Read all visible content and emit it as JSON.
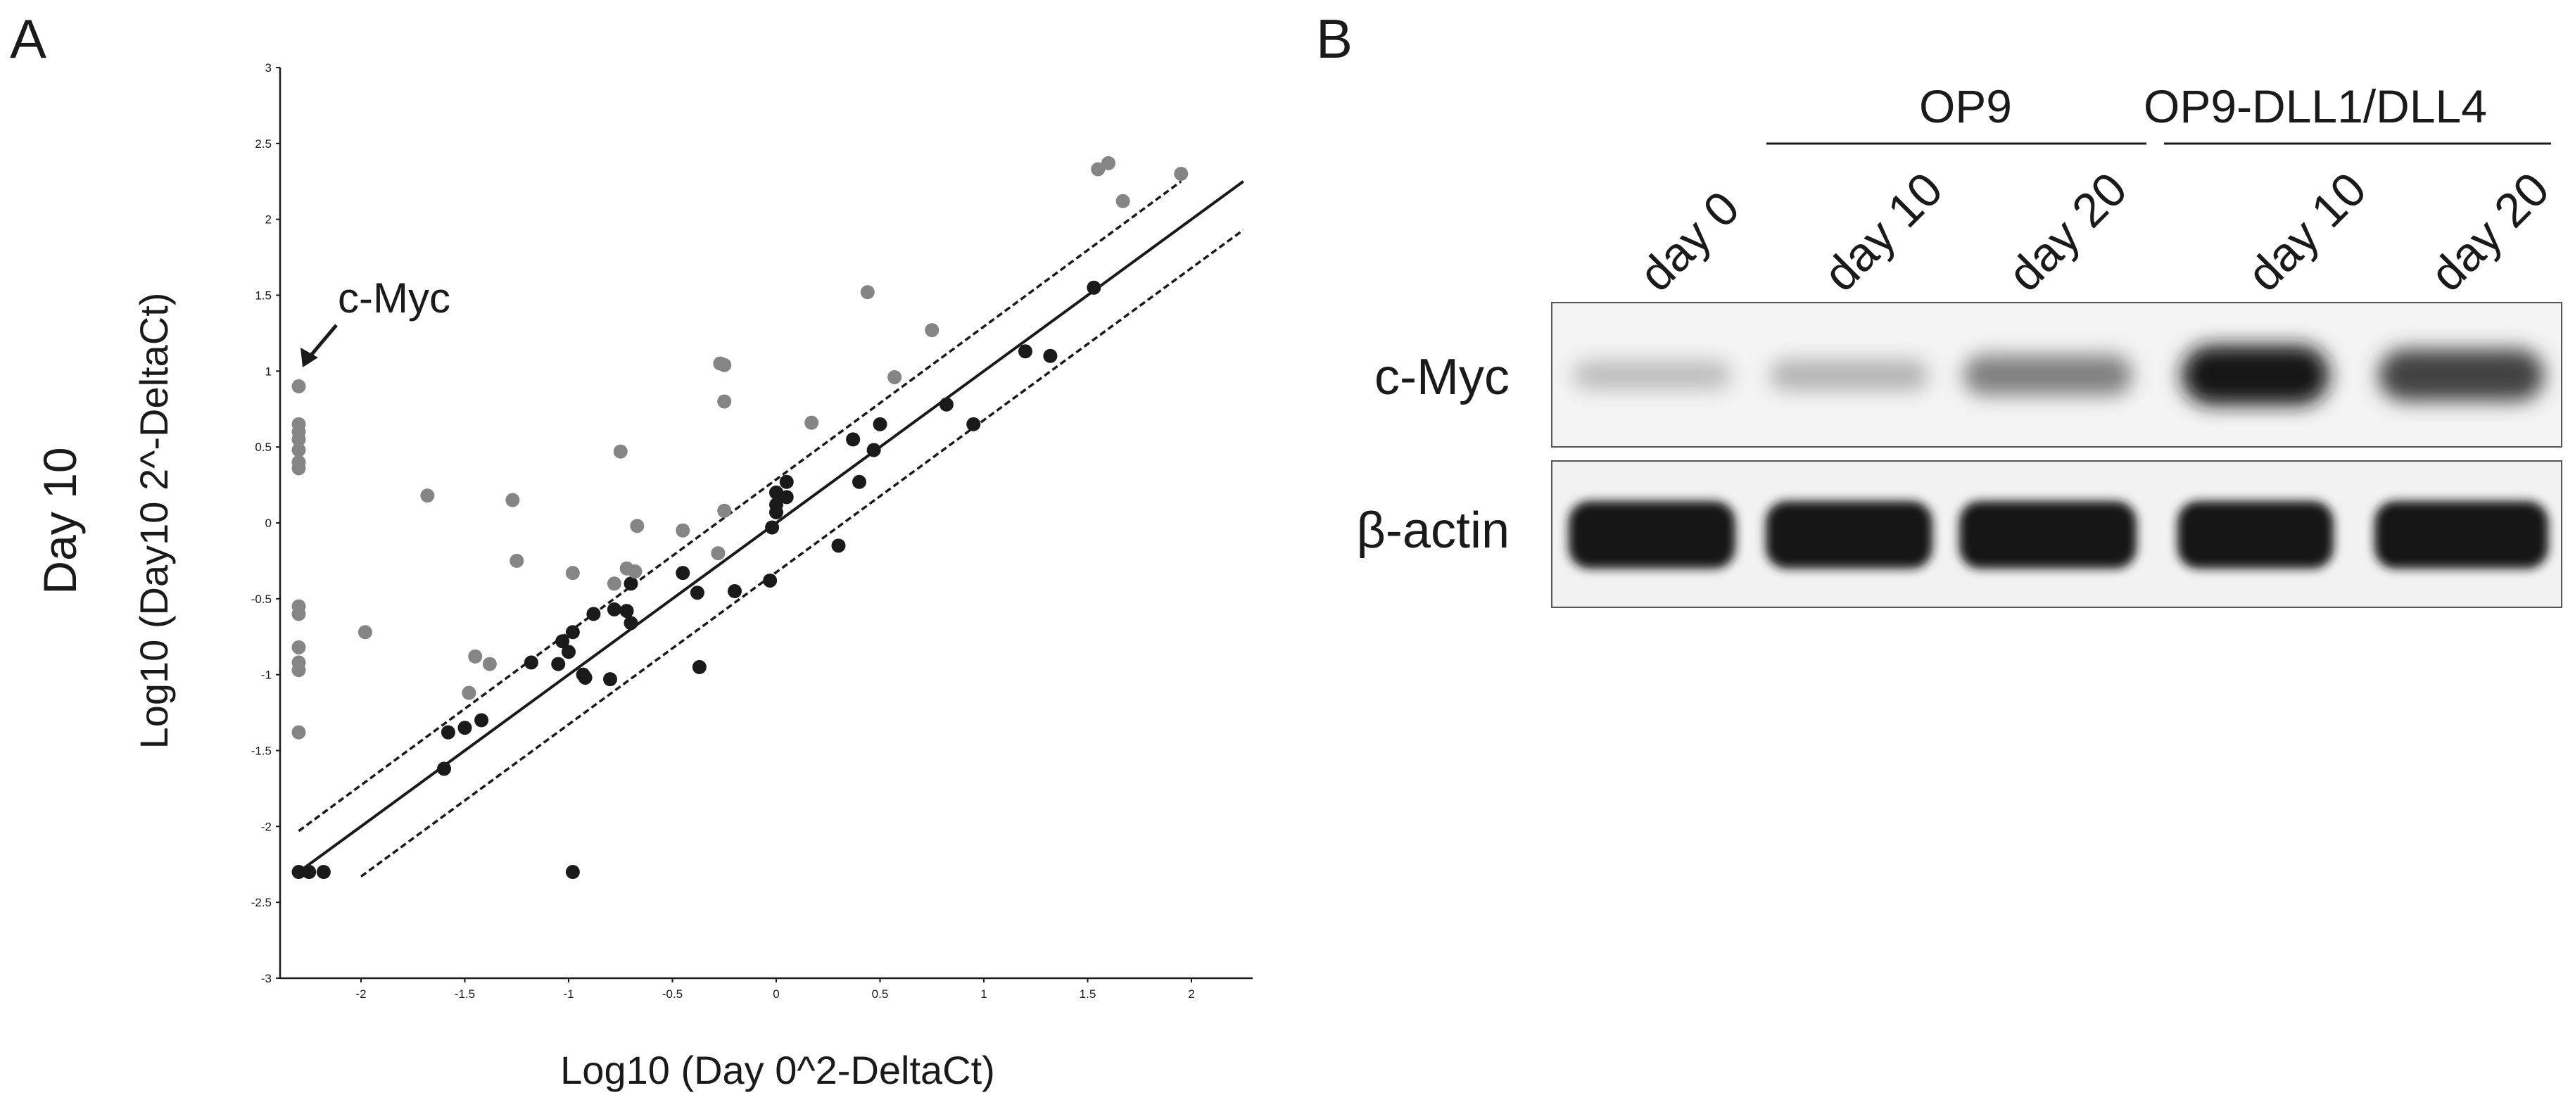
{
  "panel_a": {
    "letter": "A",
    "day_label": "Day 10",
    "annotation": "c-Myc",
    "chart_data": {
      "type": "scatter",
      "xlabel": "Log10 (Day 0^2-DeltaCt)",
      "ylabel": "Log10 (Day10 2^-DeltaCt)",
      "xlim": [
        -2.3,
        2.3
      ],
      "ylim": [
        -3,
        3
      ],
      "x_ticks": [
        "-2",
        "-1.5",
        "-1",
        "-0.5",
        "0",
        "0.5",
        "1",
        "1.5",
        "2"
      ],
      "y_ticks": [
        "3",
        "2.5",
        "2",
        "1.5",
        "1",
        "0.5",
        "0",
        "-0.5",
        "-1",
        "-1.5",
        "-2",
        "-2.5",
        "-3"
      ],
      "grid": false,
      "colors": {
        "black_points": "#1a1a1a",
        "grey_points": "#858585"
      },
      "lines": [
        {
          "style": "solid",
          "points": [
            [
              -2.3,
              -2.3
            ],
            [
              2.25,
              2.25
            ]
          ]
        },
        {
          "style": "dashed",
          "points": [
            [
              -2.3,
              -2.03
            ],
            [
              1.95,
              2.25
            ]
          ]
        },
        {
          "style": "dashed",
          "points": [
            [
              -2.0,
              -2.33
            ],
            [
              2.25,
              1.93
            ]
          ]
        }
      ],
      "series": [
        {
          "color": "black",
          "points": [
            [
              -2.3,
              -2.3
            ],
            [
              -2.25,
              -2.3
            ],
            [
              -2.18,
              -2.3
            ],
            [
              -1.6,
              -1.62
            ],
            [
              -1.58,
              -1.38
            ],
            [
              -1.5,
              -1.35
            ],
            [
              -1.42,
              -1.3
            ],
            [
              -1.18,
              -0.92
            ],
            [
              -1.05,
              -0.93
            ],
            [
              -1.03,
              -0.78
            ],
            [
              -1.0,
              -0.85
            ],
            [
              -0.98,
              -0.72
            ],
            [
              -0.93,
              -1.0
            ],
            [
              -0.92,
              -1.02
            ],
            [
              -0.88,
              -0.6
            ],
            [
              -0.8,
              -1.03
            ],
            [
              -0.78,
              -0.57
            ],
            [
              -0.72,
              -0.58
            ],
            [
              -0.7,
              -0.66
            ],
            [
              -0.7,
              -0.4
            ],
            [
              -0.45,
              -0.33
            ],
            [
              -0.38,
              -0.46
            ],
            [
              -0.37,
              -0.95
            ],
            [
              -0.2,
              -0.45
            ],
            [
              -0.03,
              -0.38
            ],
            [
              -0.02,
              -0.03
            ],
            [
              0.0,
              0.07
            ],
            [
              0.0,
              0.12
            ],
            [
              0.0,
              0.2
            ],
            [
              0.05,
              0.17
            ],
            [
              0.05,
              0.27
            ],
            [
              -0.98,
              -2.3
            ],
            [
              0.3,
              -0.15
            ],
            [
              0.37,
              0.55
            ],
            [
              0.4,
              0.27
            ],
            [
              0.47,
              0.48
            ],
            [
              0.5,
              0.65
            ],
            [
              0.82,
              0.78
            ],
            [
              0.95,
              0.65
            ],
            [
              1.2,
              1.13
            ],
            [
              1.32,
              1.1
            ],
            [
              1.53,
              1.55
            ]
          ]
        },
        {
          "color": "grey",
          "points": [
            [
              -2.3,
              0.9
            ],
            [
              -2.3,
              0.65
            ],
            [
              -2.3,
              0.6
            ],
            [
              -2.3,
              0.55
            ],
            [
              -2.3,
              0.48
            ],
            [
              -2.3,
              0.4
            ],
            [
              -2.3,
              0.36
            ],
            [
              -2.3,
              -0.55
            ],
            [
              -2.3,
              -0.6
            ],
            [
              -2.3,
              -0.82
            ],
            [
              -2.3,
              -0.92
            ],
            [
              -2.3,
              -0.97
            ],
            [
              -2.3,
              -1.38
            ],
            [
              -1.98,
              -0.72
            ],
            [
              -1.68,
              0.18
            ],
            [
              -1.48,
              -1.12
            ],
            [
              -1.45,
              -0.88
            ],
            [
              -1.38,
              -0.93
            ],
            [
              -1.27,
              0.15
            ],
            [
              -1.25,
              -0.25
            ],
            [
              -0.98,
              -0.33
            ],
            [
              -0.78,
              -0.4
            ],
            [
              -0.75,
              0.47
            ],
            [
              -0.72,
              -0.3
            ],
            [
              -0.68,
              -0.32
            ],
            [
              -0.67,
              -0.02
            ],
            [
              -0.45,
              -0.05
            ],
            [
              -0.28,
              -0.2
            ],
            [
              -0.27,
              1.05
            ],
            [
              -0.25,
              1.04
            ],
            [
              -0.25,
              0.8
            ],
            [
              -0.25,
              0.08
            ],
            [
              0.17,
              0.66
            ],
            [
              0.44,
              1.52
            ],
            [
              0.57,
              0.96
            ],
            [
              0.75,
              1.27
            ],
            [
              1.55,
              2.33
            ],
            [
              1.6,
              2.37
            ],
            [
              1.67,
              2.12
            ],
            [
              1.95,
              2.3
            ]
          ]
        }
      ]
    }
  },
  "panel_b": {
    "letter": "B",
    "groups": [
      "OP9",
      "OP9-DLL1/DLL4"
    ],
    "lanes": [
      "day 0",
      "day 10",
      "day 20",
      "day 10",
      "day 20"
    ],
    "rows": [
      {
        "label": "c-Myc",
        "band_intensity": [
          0.2,
          0.25,
          0.5,
          1.0,
          0.8
        ]
      },
      {
        "label": "β-actin",
        "band_intensity": [
          1.0,
          1.0,
          1.0,
          1.0,
          1.0
        ]
      }
    ]
  }
}
